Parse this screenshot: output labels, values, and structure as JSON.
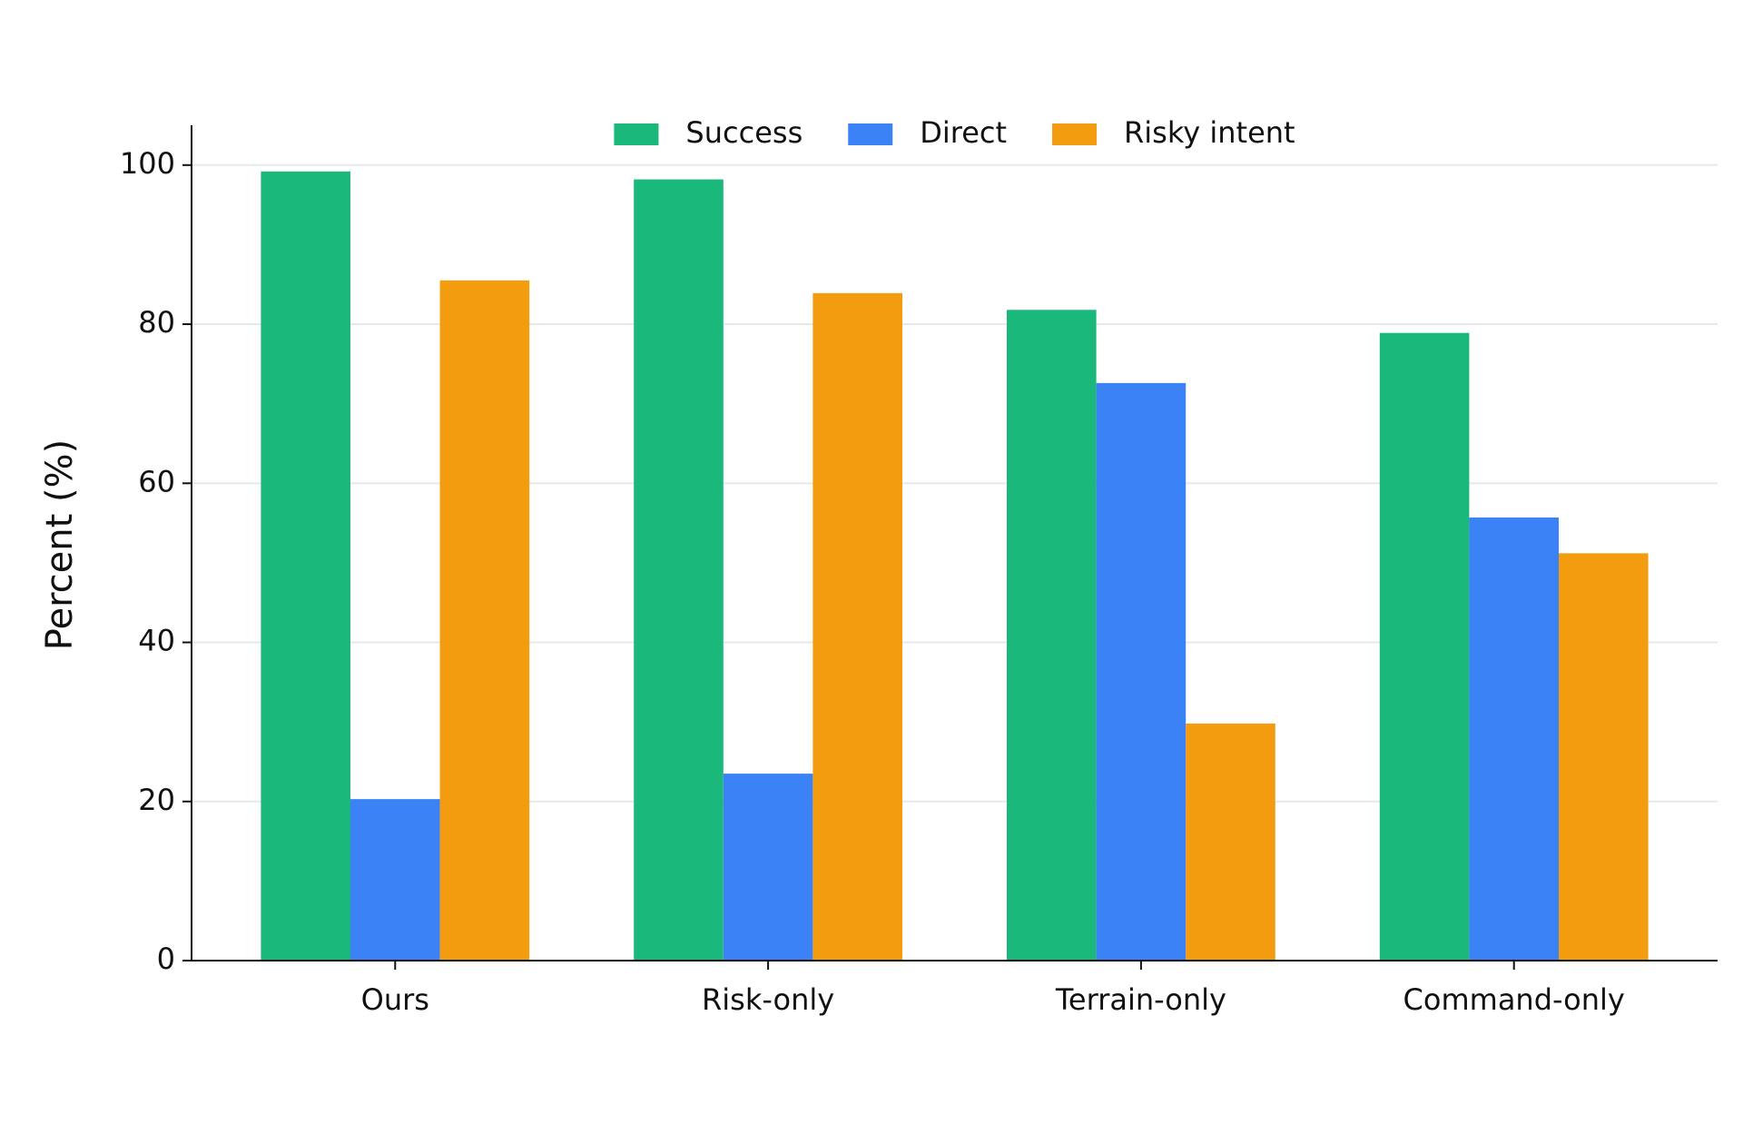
{
  "chart_data": {
    "type": "bar",
    "categories": [
      "Ours",
      "Risk-only",
      "Terrain-only",
      "Command-only"
    ],
    "series": [
      {
        "name": "Success",
        "color": "#1ab87a",
        "values": [
          99.2,
          98.2,
          81.8,
          78.9
        ]
      },
      {
        "name": "Direct",
        "color": "#3b82f6",
        "values": [
          20.3,
          23.5,
          72.6,
          55.7
        ]
      },
      {
        "name": "Risky intent",
        "color": "#f39c0f",
        "values": [
          85.5,
          83.9,
          29.8,
          51.2
        ]
      }
    ],
    "y_label": "Percent (%)",
    "ylim": [
      0,
      105
    ],
    "yticks": [
      0,
      20,
      40,
      60,
      80,
      100
    ],
    "grid": true,
    "legend": "upper center"
  }
}
